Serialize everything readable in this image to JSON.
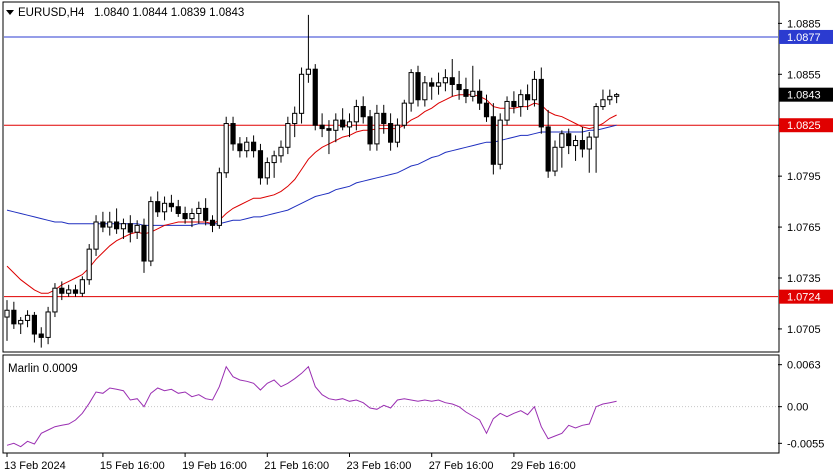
{
  "header": {
    "symbol_label": "EURUSD,H4",
    "ohlc_label": "1.0840 1.0844 1.0839 1.0843"
  },
  "indicator": {
    "label": "Marlin 0.0009"
  },
  "colors": {
    "background": "#ffffff",
    "frame": "#000000",
    "grid": "#c8c8c8",
    "candle_outline": "#000000",
    "bull_fill": "#ffffff",
    "bear_fill": "#000000",
    "ma_fast": "#dc0000",
    "ma_slow": "#1f2fbf",
    "level_blue": "#2b3bd0",
    "level_red": "#e00000",
    "indicator_line": "#9a2fb2",
    "price_badge": "#000000"
  },
  "price_axis": {
    "ticks": [
      "1.0885",
      "1.0855",
      "1.0825",
      "1.0795",
      "1.0765",
      "1.0735",
      "1.0705"
    ]
  },
  "indicator_axis": {
    "ticks": [
      "0.0063",
      "0.00",
      "-0.0055"
    ]
  },
  "time_axis": {
    "labels": [
      "13 Feb 2024",
      "15 Feb 16:00",
      "19 Feb 16:00",
      "21 Feb 16:00",
      "23 Feb 16:00",
      "27 Feb 16:00",
      "29 Feb 16:00"
    ]
  },
  "levels": [
    {
      "value": 1.0877,
      "label": "1.0877",
      "color": "#2b3bd0"
    },
    {
      "value": 1.0825,
      "label": "1.0825",
      "color": "#e00000"
    },
    {
      "value": 1.0724,
      "label": "1.0724",
      "color": "#e00000"
    }
  ],
  "current_price": {
    "value": 1.0843,
    "label": "1.0843"
  },
  "chart_data": [
    {
      "type": "candlestick",
      "ylim": [
        1.0692,
        1.0897
      ],
      "x_start_index": 0,
      "candles": [
        [
          1.0712,
          1.0722,
          1.0698,
          1.0716
        ],
        [
          1.0716,
          1.0721,
          1.0705,
          1.0708
        ],
        [
          1.0708,
          1.0712,
          1.0702,
          1.071
        ],
        [
          1.071,
          1.0716,
          1.0706,
          1.0713
        ],
        [
          1.0713,
          1.0715,
          1.0697,
          1.0702
        ],
        [
          1.0702,
          1.0706,
          1.0694,
          1.07
        ],
        [
          1.07,
          1.0718,
          1.0696,
          1.0715
        ],
        [
          1.0715,
          1.0732,
          1.0712,
          1.0729
        ],
        [
          1.0729,
          1.0733,
          1.0722,
          1.0726
        ],
        [
          1.0726,
          1.0731,
          1.0724,
          1.0728
        ],
        [
          1.0728,
          1.0731,
          1.0724,
          1.0726
        ],
        [
          1.0726,
          1.0736,
          1.0724,
          1.0734
        ],
        [
          1.0734,
          1.0755,
          1.0731,
          1.0752
        ],
        [
          1.0752,
          1.0772,
          1.0748,
          1.0768
        ],
        [
          1.0768,
          1.0774,
          1.0762,
          1.0765
        ],
        [
          1.0765,
          1.0774,
          1.076,
          1.0768
        ],
        [
          1.0768,
          1.0776,
          1.0761,
          1.0764
        ],
        [
          1.0764,
          1.077,
          1.0758,
          1.0767
        ],
        [
          1.0767,
          1.0772,
          1.0756,
          1.0762
        ],
        [
          1.0762,
          1.0769,
          1.0758,
          1.0766
        ],
        [
          1.0766,
          1.077,
          1.0738,
          1.0745
        ],
        [
          1.0745,
          1.0783,
          1.0742,
          1.078
        ],
        [
          1.078,
          1.0786,
          1.0771,
          1.0774
        ],
        [
          1.0774,
          1.0783,
          1.0769,
          1.0779
        ],
        [
          1.0779,
          1.0784,
          1.0774,
          1.0777
        ],
        [
          1.0777,
          1.0781,
          1.0771,
          1.0773
        ],
        [
          1.0773,
          1.0777,
          1.0767,
          1.077
        ],
        [
          1.077,
          1.0776,
          1.0765,
          1.0773
        ],
        [
          1.0773,
          1.078,
          1.0767,
          1.0776
        ],
        [
          1.0776,
          1.0782,
          1.0766,
          1.0769
        ],
        [
          1.0769,
          1.0772,
          1.0762,
          1.0766
        ],
        [
          1.0766,
          1.08,
          1.0764,
          1.0797
        ],
        [
          1.0797,
          1.083,
          1.0794,
          1.0826
        ],
        [
          1.0826,
          1.083,
          1.081,
          1.0814
        ],
        [
          1.0814,
          1.0818,
          1.0806,
          1.081
        ],
        [
          1.081,
          1.0818,
          1.0806,
          1.0815
        ],
        [
          1.0815,
          1.0819,
          1.0806,
          1.081
        ],
        [
          1.081,
          1.0814,
          1.079,
          1.0794
        ],
        [
          1.0794,
          1.0806,
          1.079,
          1.0803
        ],
        [
          1.0803,
          1.081,
          1.0794,
          1.0807
        ],
        [
          1.0807,
          1.0816,
          1.0803,
          1.0812
        ],
        [
          1.0812,
          1.083,
          1.0808,
          1.0826
        ],
        [
          1.0826,
          1.0836,
          1.0818,
          1.0832
        ],
        [
          1.0832,
          1.0859,
          1.0826,
          1.0855
        ],
        [
          1.0855,
          1.089,
          1.085,
          1.0858
        ],
        [
          1.0858,
          1.0861,
          1.0822,
          1.0825
        ],
        [
          1.0825,
          1.0832,
          1.0818,
          1.0823
        ],
        [
          1.0823,
          1.0828,
          1.0808,
          1.0822
        ],
        [
          1.0822,
          1.0832,
          1.0815,
          1.0828
        ],
        [
          1.0828,
          1.0835,
          1.0822,
          1.0824
        ],
        [
          1.0824,
          1.0832,
          1.0818,
          1.0827
        ],
        [
          1.0827,
          1.084,
          1.0822,
          1.0836
        ],
        [
          1.0836,
          1.0842,
          1.0826,
          1.083
        ],
        [
          1.083,
          1.0834,
          1.081,
          1.0814
        ],
        [
          1.0814,
          1.0837,
          1.081,
          1.0832
        ],
        [
          1.0832,
          1.0837,
          1.082,
          1.0826
        ],
        [
          1.0826,
          1.0832,
          1.081,
          1.0815
        ],
        [
          1.0815,
          1.0829,
          1.0812,
          1.0825
        ],
        [
          1.0825,
          1.084,
          1.0823,
          1.0838
        ],
        [
          1.0838,
          1.0858,
          1.0833,
          1.0856
        ],
        [
          1.0856,
          1.086,
          1.0836,
          1.084
        ],
        [
          1.084,
          1.0854,
          1.0836,
          1.085
        ],
        [
          1.085,
          1.0853,
          1.084,
          1.0848
        ],
        [
          1.0848,
          1.0856,
          1.0843,
          1.085
        ],
        [
          1.085,
          1.0858,
          1.0845,
          1.0853
        ],
        [
          1.0853,
          1.0864,
          1.0842,
          1.0849
        ],
        [
          1.0849,
          1.0857,
          1.084,
          1.0846
        ],
        [
          1.0846,
          1.0853,
          1.0838,
          1.0842
        ],
        [
          1.0842,
          1.086,
          1.0839,
          1.0845
        ],
        [
          1.0845,
          1.0852,
          1.0834,
          1.0838
        ],
        [
          1.0838,
          1.0843,
          1.0827,
          1.083
        ],
        [
          1.083,
          1.0838,
          1.0796,
          1.0802
        ],
        [
          1.0802,
          1.0832,
          1.0799,
          1.0828
        ],
        [
          1.0828,
          1.0842,
          1.0825,
          1.0839
        ],
        [
          1.0839,
          1.0845,
          1.0832,
          1.0836
        ],
        [
          1.0836,
          1.0846,
          1.083,
          1.0843
        ],
        [
          1.0843,
          1.0849,
          1.0834,
          1.084
        ],
        [
          1.084,
          1.0857,
          1.0836,
          1.0852
        ],
        [
          1.0852,
          1.0859,
          1.082,
          1.0824
        ],
        [
          1.0824,
          1.0834,
          1.0794,
          1.0798
        ],
        [
          1.0798,
          1.0816,
          1.0795,
          1.0812
        ],
        [
          1.0812,
          1.0822,
          1.08,
          1.082
        ],
        [
          1.082,
          1.0823,
          1.0808,
          1.0813
        ],
        [
          1.0813,
          1.0819,
          1.0804,
          1.0816
        ],
        [
          1.0816,
          1.0824,
          1.0806,
          1.0811
        ],
        [
          1.0811,
          1.0821,
          1.0797,
          1.0818
        ],
        [
          1.0818,
          1.0838,
          1.0797,
          1.0836
        ],
        [
          1.0836,
          1.0846,
          1.0834,
          1.084
        ],
        [
          1.084,
          1.0846,
          1.0837,
          1.0842
        ],
        [
          1.0842,
          1.0844,
          1.0838,
          1.0843
        ]
      ],
      "ma_fast": [
        1.0742,
        1.0738,
        1.0734,
        1.0731,
        1.0728,
        1.0726,
        1.0726,
        1.0728,
        1.0731,
        1.0733,
        1.0735,
        1.0737,
        1.0741,
        1.0746,
        1.075,
        1.0754,
        1.0757,
        1.0759,
        1.0761,
        1.0762,
        1.0761,
        1.0762,
        1.0764,
        1.0766,
        1.0767,
        1.0768,
        1.0768,
        1.0768,
        1.0768,
        1.0768,
        1.0767,
        1.0769,
        1.0773,
        1.0776,
        1.0778,
        1.078,
        1.0782,
        1.0782,
        1.0783,
        1.0784,
        1.0786,
        1.0789,
        1.0793,
        1.0799,
        1.0805,
        1.0809,
        1.0812,
        1.0814,
        1.0816,
        1.0818,
        1.0819,
        1.0821,
        1.0822,
        1.0822,
        1.0823,
        1.0823,
        1.0823,
        1.0823,
        1.0825,
        1.0828,
        1.083,
        1.0833,
        1.0835,
        1.0838,
        1.084,
        1.0842,
        1.0843,
        1.0843,
        1.0843,
        1.0842,
        1.084,
        1.0836,
        1.0835,
        1.0835,
        1.0835,
        1.0836,
        1.0836,
        1.0838,
        1.0837,
        1.0833,
        1.0831,
        1.083,
        1.0828,
        1.0826,
        1.0824,
        1.0823,
        1.0824,
        1.0826,
        1.0829,
        1.0831
      ],
      "ma_slow": [
        1.0775,
        1.0774,
        1.0773,
        1.0772,
        1.0771,
        1.077,
        1.0769,
        1.0768,
        1.0768,
        1.0767,
        1.0767,
        1.0767,
        1.0767,
        1.0767,
        1.0767,
        1.0767,
        1.0767,
        1.0767,
        1.0767,
        1.0767,
        1.0766,
        1.0766,
        1.0766,
        1.0766,
        1.0766,
        1.0766,
        1.0766,
        1.0766,
        1.0767,
        1.0767,
        1.0767,
        1.0767,
        1.0768,
        1.0769,
        1.0769,
        1.077,
        1.0771,
        1.0771,
        1.0772,
        1.0773,
        1.0774,
        1.0775,
        1.0777,
        1.0779,
        1.0781,
        1.0783,
        1.0784,
        1.0785,
        1.0787,
        1.0788,
        1.0789,
        1.0791,
        1.0792,
        1.0793,
        1.0794,
        1.0795,
        1.0796,
        1.0797,
        1.0799,
        1.0801,
        1.0802,
        1.0804,
        1.0806,
        1.0807,
        1.0809,
        1.081,
        1.0811,
        1.0812,
        1.0813,
        1.0814,
        1.0815,
        1.0815,
        1.0816,
        1.0817,
        1.0818,
        1.0819,
        1.0819,
        1.082,
        1.0821,
        1.0821,
        1.0821,
        1.0821,
        1.0821,
        1.0821,
        1.0821,
        1.0822,
        1.0822,
        1.0823,
        1.0824,
        1.0825
      ],
      "ma_slow_start_index": 0
    },
    {
      "type": "line",
      "name": "Marlin",
      "ylim": [
        -0.0068,
        0.0076
      ],
      "values": [
        -0.0058,
        -0.0055,
        -0.006,
        -0.0052,
        -0.0056,
        -0.004,
        -0.0035,
        -0.003,
        -0.0028,
        -0.0026,
        -0.002,
        -0.001,
        0.0005,
        0.0022,
        0.002,
        0.0028,
        0.0026,
        0.0024,
        0.001,
        0.0012,
        0.0,
        0.002,
        0.0028,
        0.0024,
        0.0026,
        0.002,
        0.0022,
        0.0015,
        0.0018,
        0.0012,
        0.001,
        0.003,
        0.006,
        0.0045,
        0.004,
        0.0038,
        0.0035,
        0.0025,
        0.0035,
        0.004,
        0.003,
        0.0035,
        0.0042,
        0.005,
        0.006,
        0.003,
        0.0018,
        0.0012,
        0.001,
        0.0012,
        0.0008,
        0.001,
        0.0006,
        -0.0002,
        -0.0004,
        0.0002,
        -0.0002,
        0.001,
        0.0012,
        0.001,
        0.0008,
        0.001,
        0.0008,
        0.001,
        0.0006,
        0.0004,
        0.0,
        -0.0008,
        -0.0014,
        -0.002,
        -0.004,
        -0.0018,
        -0.001,
        -0.0015,
        -0.001,
        -0.0006,
        -0.0012,
        0.0,
        -0.003,
        -0.0048,
        -0.0044,
        -0.004,
        -0.0028,
        -0.0032,
        -0.0028,
        -0.0026,
        0.0,
        0.0004,
        0.0006,
        0.0008
      ]
    }
  ]
}
